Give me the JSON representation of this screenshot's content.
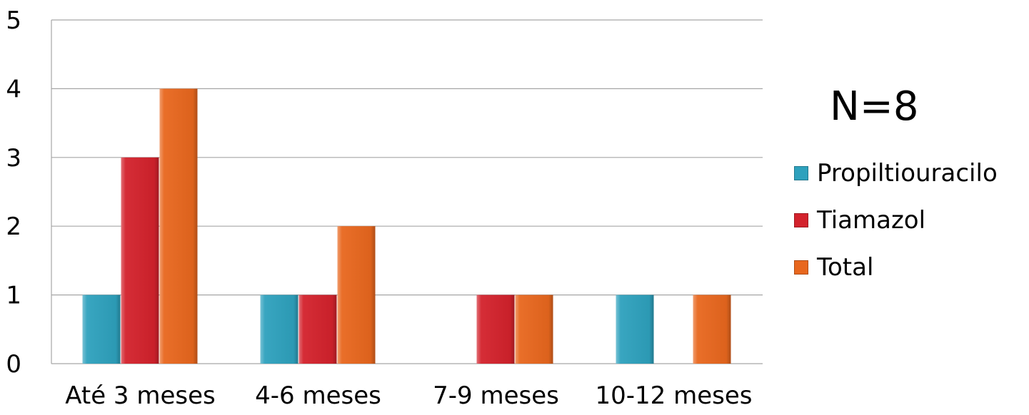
{
  "annotation": "N=8",
  "colors": {
    "Propiltiouracilo": "#2ea1bd",
    "Tiamazol": "#d3222c",
    "Total": "#e8671e",
    "grid": "#a6a6a6"
  },
  "legend": [
    "Propiltiouracilo",
    "Tiamazol",
    "Total"
  ],
  "chart_data": {
    "type": "bar",
    "categories": [
      "Até 3 meses",
      "4-6 meses",
      "7-9 meses",
      "10-12 meses"
    ],
    "series": [
      {
        "name": "Propiltiouracilo",
        "values": [
          1,
          1,
          0,
          1
        ]
      },
      {
        "name": "Tiamazol",
        "values": [
          3,
          1,
          1,
          0
        ]
      },
      {
        "name": "Total",
        "values": [
          4,
          2,
          1,
          1
        ]
      }
    ],
    "yticks": [
      0,
      1,
      2,
      3,
      4,
      5
    ],
    "ylim": [
      0,
      5
    ],
    "grid": true,
    "legend_position": "right"
  }
}
